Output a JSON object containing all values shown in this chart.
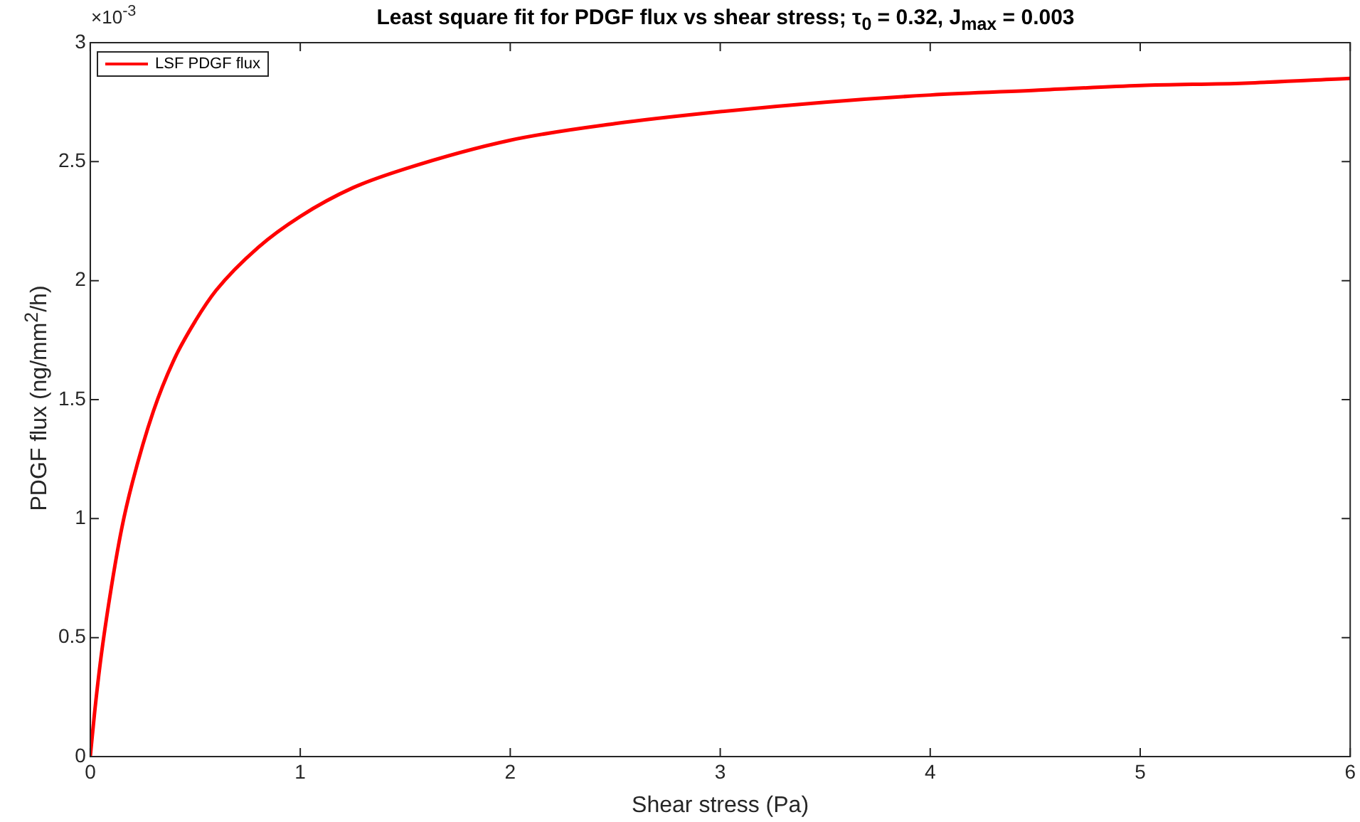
{
  "chart_data": {
    "type": "line",
    "title": "Least square fit for PDGF flux vs shear stress; τ$_{0}$ = 0.32, J$_{max}$ = 0.003",
    "xlabel": "Shear stress (Pa)",
    "ylabel": "PDGF flux (ng/mm$^{2}$/h)",
    "annotations": [
      "×10$^{-3}$"
    ],
    "x": [
      0,
      0.02,
      0.05,
      0.1,
      0.15,
      0.2,
      0.3,
      0.4,
      0.5,
      0.6,
      0.8,
      1,
      1.25,
      1.5,
      2,
      2.5,
      3,
      3.5,
      4,
      4.5,
      5,
      5.5,
      6
    ],
    "series": [
      {
        "name": "LSF PDGF flux",
        "color": "#ff0000",
        "values": [
          0,
          0.18,
          0.41,
          0.71,
          0.96,
          1.15,
          1.45,
          1.67,
          1.83,
          1.96,
          2.14,
          2.27,
          2.39,
          2.47,
          2.59,
          2.66,
          2.71,
          2.75,
          2.78,
          2.8,
          2.82,
          2.83,
          2.85
        ]
      }
    ],
    "xlim": [
      0,
      6
    ],
    "xticks": [
      0,
      1,
      2,
      3,
      4,
      5,
      6
    ],
    "ylim": [
      0,
      3
    ],
    "yticks": [
      0,
      0.5,
      1,
      1.5,
      2,
      2.5,
      3
    ],
    "grid": false,
    "legend": "top left",
    "marker": "none",
    "line_style": "solid"
  }
}
